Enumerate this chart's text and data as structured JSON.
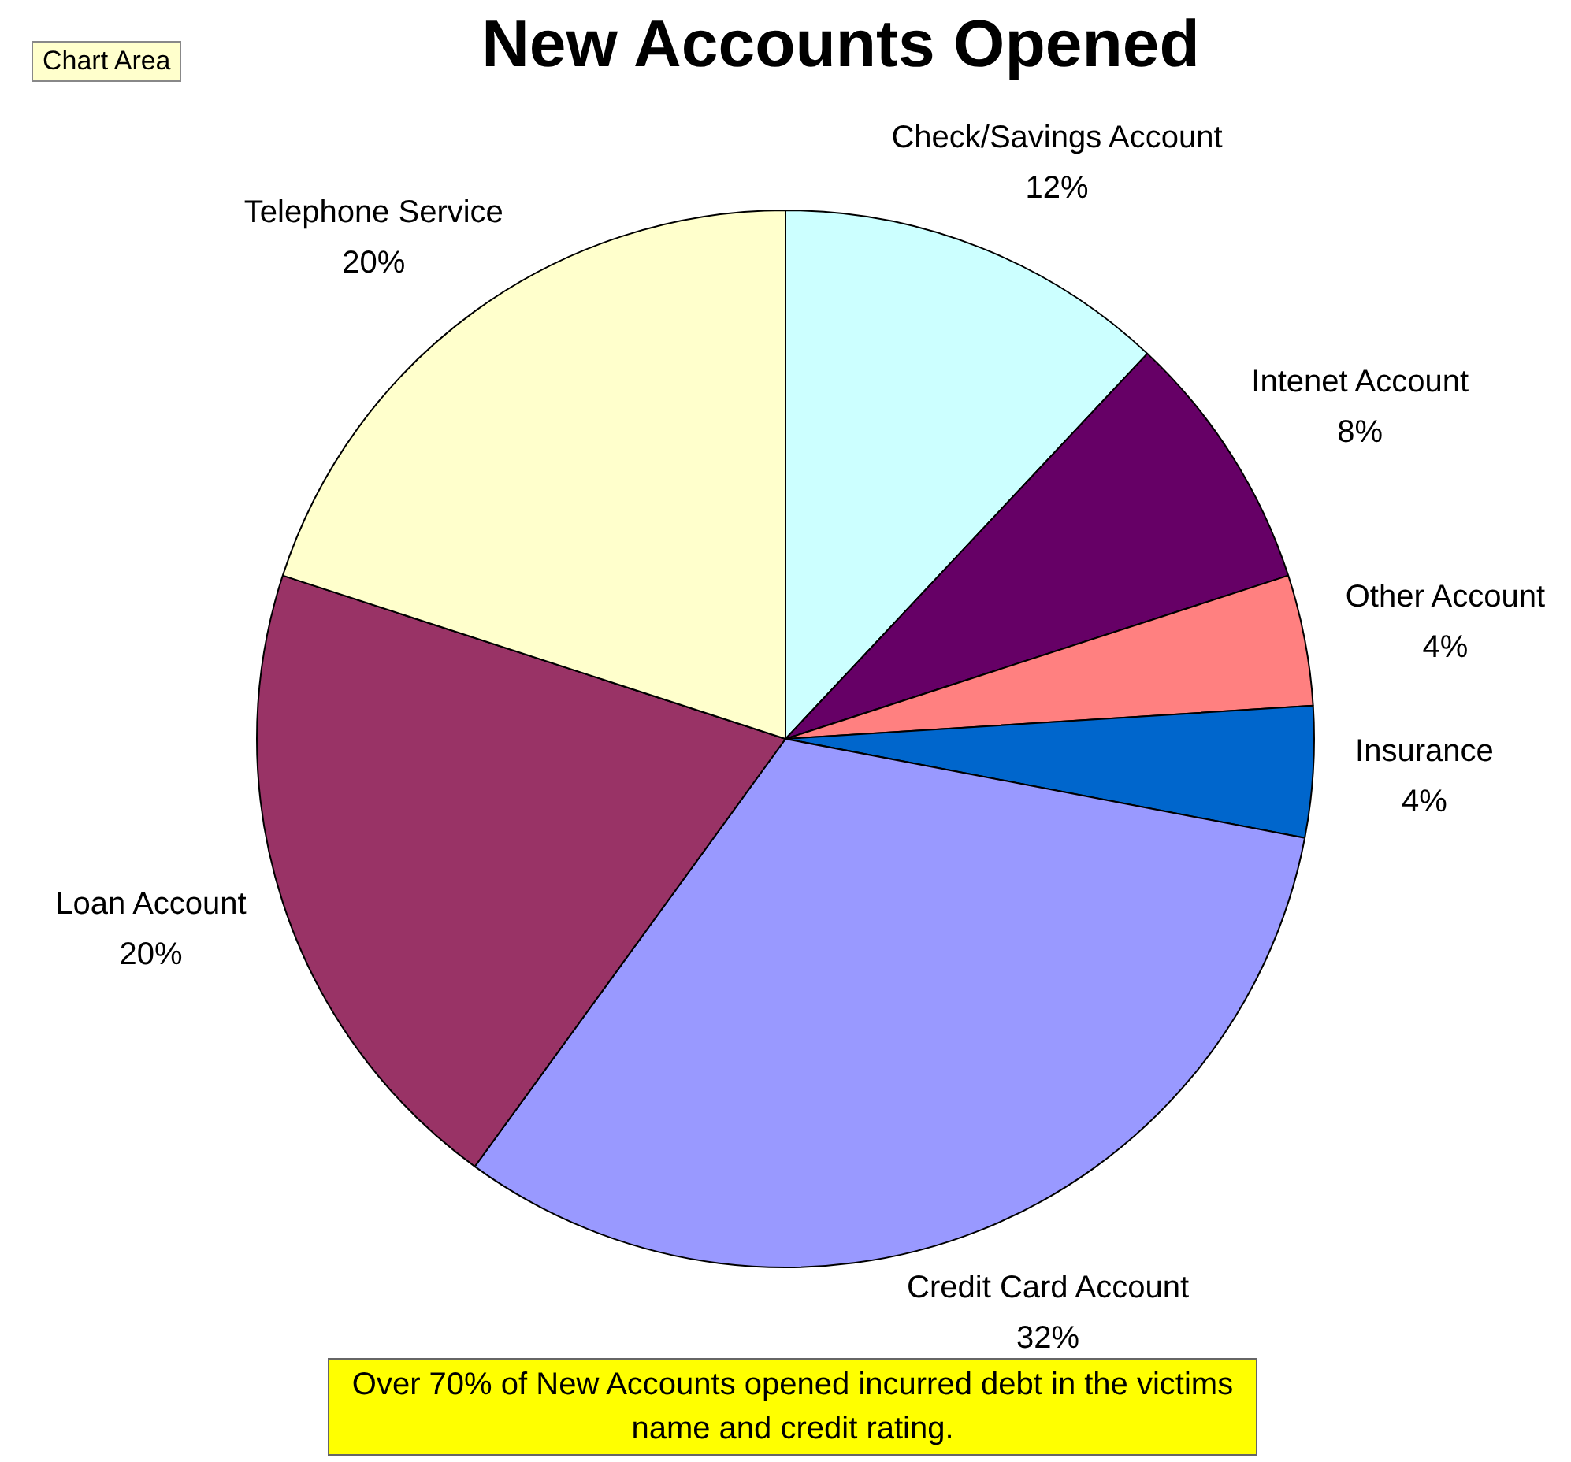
{
  "chart_data": {
    "type": "pie",
    "title": "New Accounts Opened",
    "categories": [
      "Check/Savings Account",
      "Intenet Account",
      "Other Account",
      "Insurance",
      "Credit Card Account",
      "Loan Account",
      "Telephone Service"
    ],
    "values": [
      12,
      8,
      4,
      4,
      32,
      20,
      20
    ],
    "value_labels": [
      "12%",
      "8%",
      "4%",
      "4%",
      "32%",
      "20%",
      "20%"
    ],
    "colors": [
      "#ccffff",
      "#660066",
      "#ff8080",
      "#0066cc",
      "#9999ff",
      "#993366",
      "#ffffcc"
    ],
    "legend": false,
    "annotations": [
      "Chart Area",
      "Over 70% of New Accounts opened incurred debt in the victims name and credit rating."
    ]
  }
}
